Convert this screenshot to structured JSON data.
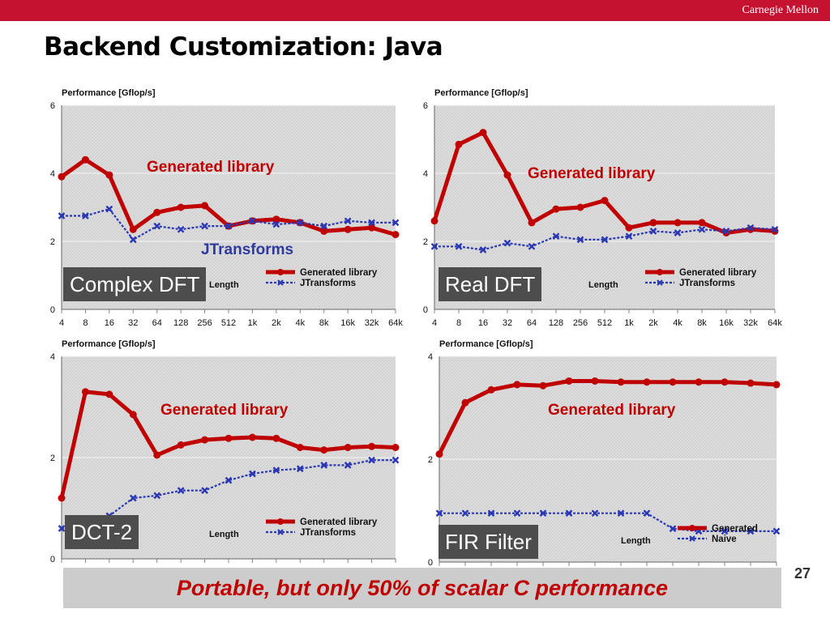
{
  "header": {
    "institution": "Carnegie Mellon",
    "title": "Backend Customization: Java"
  },
  "footer": {
    "text": "Portable, but only 50% of scalar C performance",
    "page_number": "27"
  },
  "colors": {
    "generated": "#c00000",
    "comparison": "#2b38b3",
    "brand": "#c41230"
  },
  "panels": [
    {
      "tag": "Complex DFT",
      "callout_generated": "Generated library",
      "callout_comparison": "JTransforms"
    },
    {
      "tag": "Real DFT",
      "callout_generated": "Generated library"
    },
    {
      "tag": "DCT-2",
      "callout_generated": "Generated library"
    },
    {
      "tag": "FIR Filter",
      "callout_generated": "Generated library"
    }
  ],
  "chart_data": [
    {
      "type": "line",
      "ylabel": "Performance [Gflop/s]",
      "xlabel": "Length",
      "ylim": [
        0,
        6
      ],
      "yticks": [
        0,
        2,
        4,
        6
      ],
      "categories": [
        "4",
        "8",
        "16",
        "32",
        "64",
        "128",
        "256",
        "512",
        "1k",
        "2k",
        "4k",
        "8k",
        "16k",
        "32k",
        "64k"
      ],
      "grid": true,
      "legend": "bottom-right",
      "series": [
        {
          "name": "Generated library",
          "values": [
            3.9,
            4.4,
            3.95,
            2.35,
            2.85,
            3.0,
            3.05,
            2.45,
            2.6,
            2.65,
            2.55,
            2.3,
            2.35,
            2.4,
            2.2
          ]
        },
        {
          "name": "JTransforms",
          "values": [
            2.75,
            2.75,
            2.95,
            2.05,
            2.45,
            2.35,
            2.45,
            2.45,
            2.6,
            2.5,
            2.55,
            2.45,
            2.6,
            2.55,
            2.55
          ]
        }
      ]
    },
    {
      "type": "line",
      "ylabel": "Performance [Gflop/s]",
      "xlabel": "Length",
      "ylim": [
        0,
        6
      ],
      "yticks": [
        0,
        2,
        4,
        6
      ],
      "categories": [
        "4",
        "8",
        "16",
        "32",
        "64",
        "128",
        "256",
        "512",
        "1k",
        "2k",
        "4k",
        "8k",
        "16k",
        "32k",
        "64k"
      ],
      "grid": true,
      "legend": "bottom-right",
      "series": [
        {
          "name": "Generated library",
          "values": [
            2.6,
            4.85,
            5.2,
            3.95,
            2.55,
            2.95,
            3.0,
            3.2,
            2.4,
            2.55,
            2.55,
            2.55,
            2.25,
            2.35,
            2.3
          ]
        },
        {
          "name": "JTransforms",
          "values": [
            1.85,
            1.85,
            1.75,
            1.95,
            1.85,
            2.15,
            2.05,
            2.05,
            2.15,
            2.3,
            2.25,
            2.35,
            2.3,
            2.4,
            2.35
          ]
        }
      ]
    },
    {
      "type": "line",
      "ylabel": "Performance [Gflop/s]",
      "xlabel": "Length",
      "ylim": [
        0,
        4
      ],
      "yticks": [
        0,
        2,
        4
      ],
      "grid": true,
      "legend": "bottom-right",
      "series": [
        {
          "name": "Generated library",
          "values": [
            1.2,
            3.3,
            3.25,
            2.85,
            2.05,
            2.25,
            2.35,
            2.38,
            2.4,
            2.38,
            2.2,
            2.15,
            2.2,
            2.22,
            2.2
          ]
        },
        {
          "name": "JTransforms",
          "values": [
            0.6,
            0.7,
            0.85,
            1.2,
            1.25,
            1.35,
            1.35,
            1.55,
            1.68,
            1.75,
            1.78,
            1.85,
            1.85,
            1.95,
            1.95
          ]
        }
      ]
    },
    {
      "type": "line",
      "ylabel": "Performance [Gflop/s]",
      "xlabel": "Length",
      "ylim": [
        0,
        4
      ],
      "yticks": [
        0,
        2,
        4
      ],
      "grid": true,
      "legend": "bottom-right",
      "series": [
        {
          "name": "Generated",
          "values": [
            2.1,
            3.1,
            3.35,
            3.45,
            3.43,
            3.52,
            3.52,
            3.5,
            3.5,
            3.5,
            3.5,
            3.5,
            3.48,
            3.45
          ]
        },
        {
          "name": "Naive",
          "values": [
            0.95,
            0.95,
            0.95,
            0.95,
            0.95,
            0.95,
            0.95,
            0.95,
            0.95,
            0.65,
            0.6,
            0.6,
            0.6,
            0.6
          ]
        }
      ]
    }
  ]
}
